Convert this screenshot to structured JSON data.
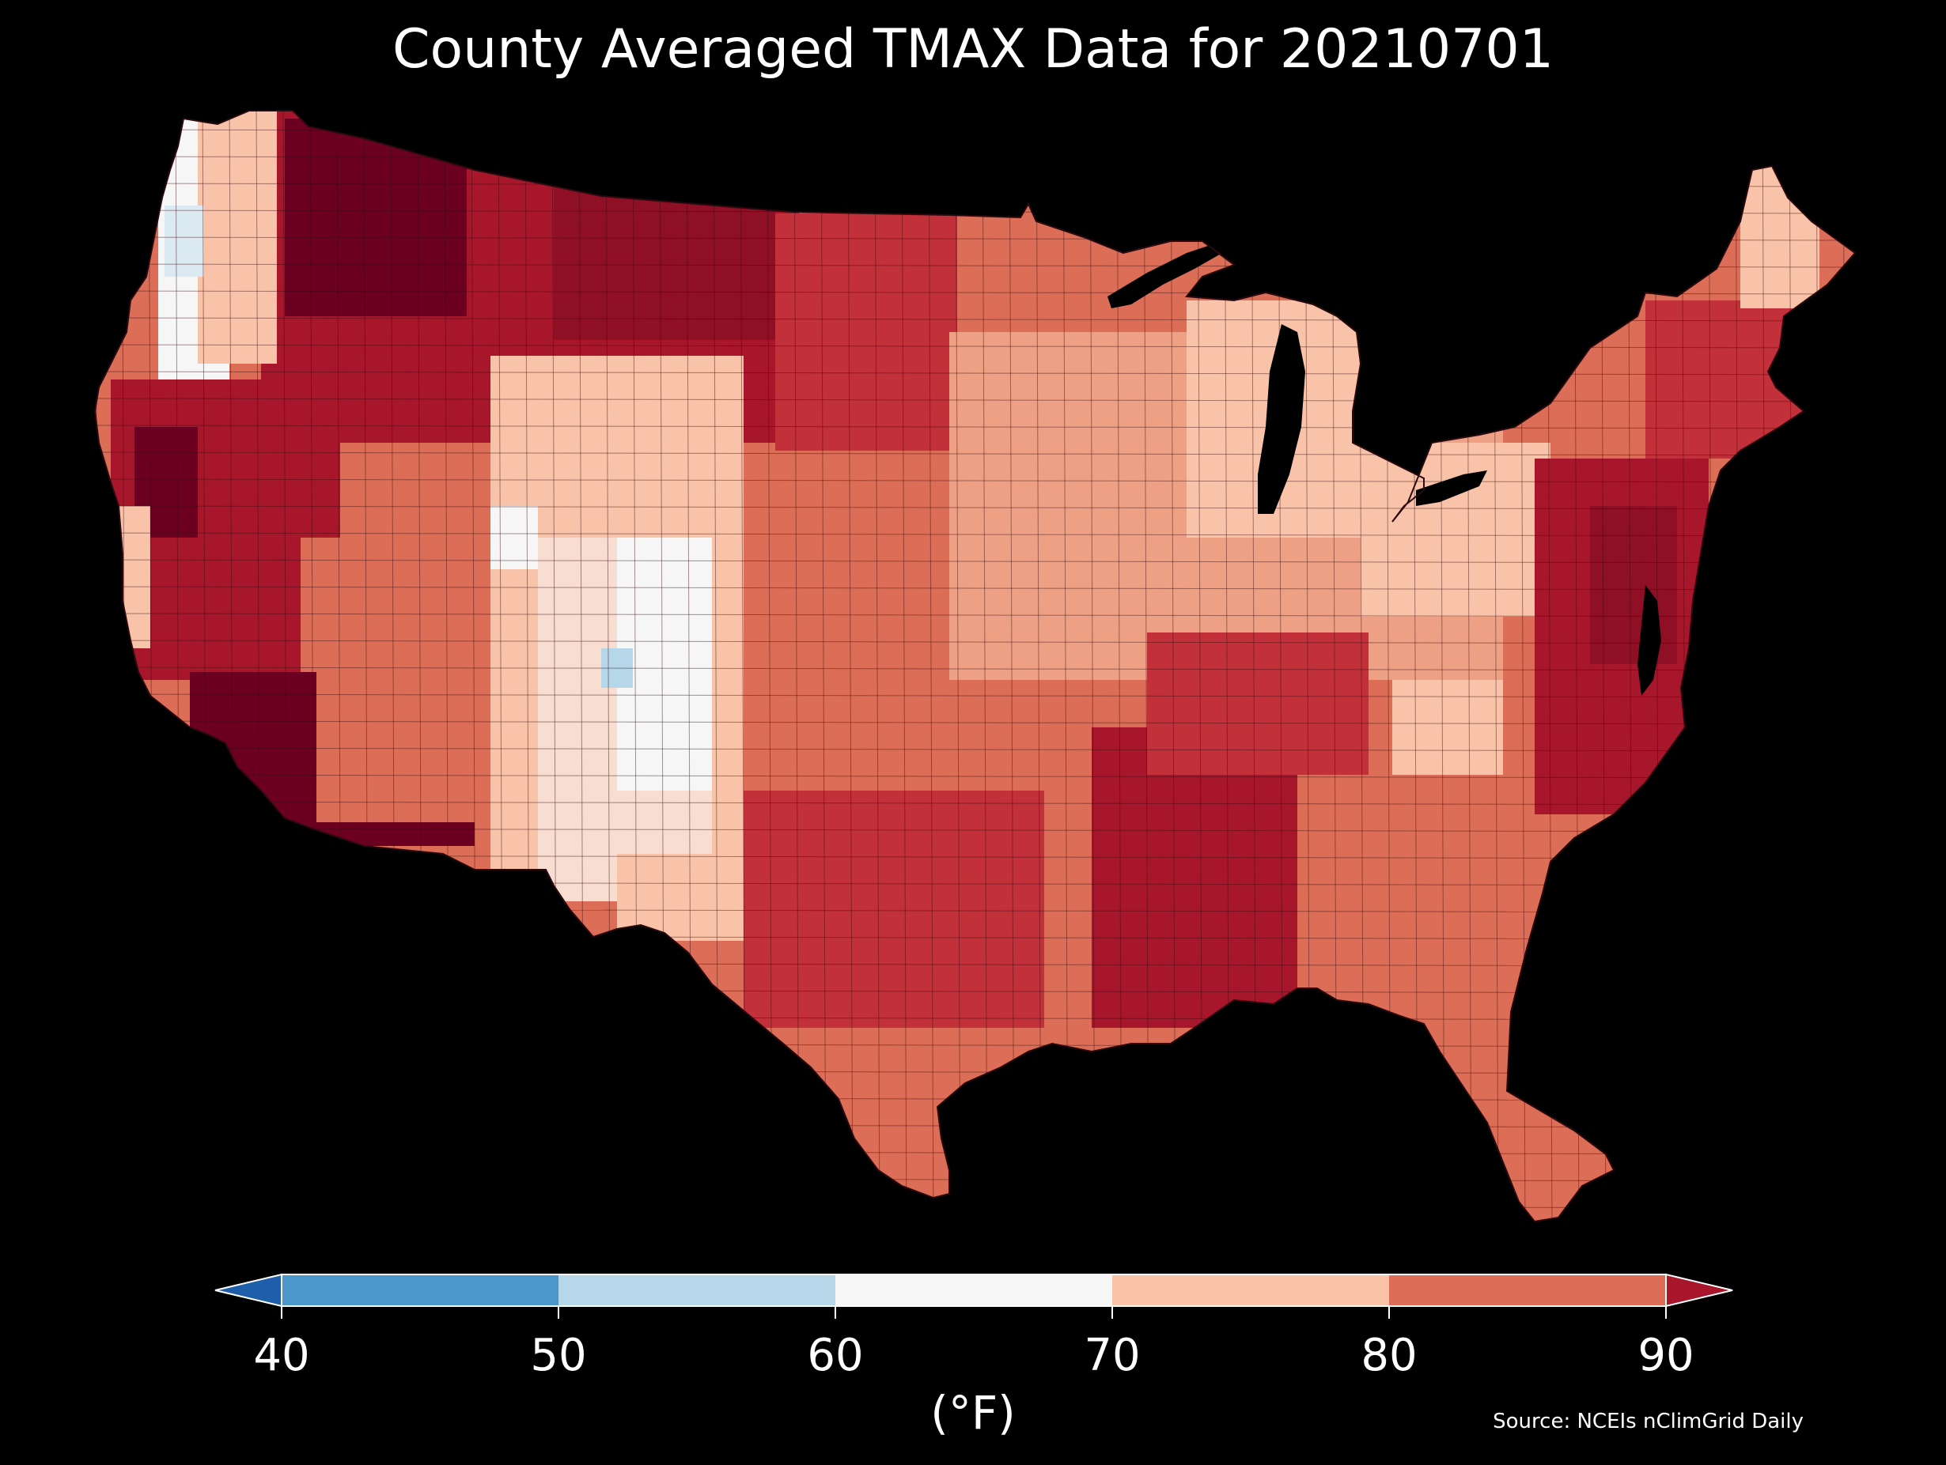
{
  "title": "County Averaged TMAX Data for 20210701",
  "colorbar": {
    "ticks": [
      "40",
      "50",
      "60",
      "70",
      "80",
      "90"
    ],
    "unit": "(°F)",
    "bins": [
      {
        "range": [
          40,
          50
        ],
        "color": "#4b97c9"
      },
      {
        "range": [
          50,
          60
        ],
        "color": "#b6d7e9"
      },
      {
        "range": [
          60,
          70
        ],
        "color": "#f6f6f6"
      },
      {
        "range": [
          70,
          80
        ],
        "color": "#f9c3a9"
      },
      {
        "range": [
          80,
          90
        ],
        "color": "#dc6e57"
      }
    ],
    "under_color": "#1f5ea8",
    "over_color": "#a8162b"
  },
  "source": "Source: NCEIs nClimGrid Daily",
  "palette": {
    "very_hot": "#6b0020",
    "hot_dark": "#8f0f25",
    "hot": "#a8162b",
    "warm_dark": "#c2303a",
    "warm": "#dc6e57",
    "mild": "#eda084",
    "mild_light": "#f9c3a9",
    "near_neutral": "#f8ddd1",
    "neutral": "#f6f6f6",
    "cool": "#dbe9f3",
    "cool_blue": "#b6d7e9",
    "border": "#3a0a10"
  }
}
